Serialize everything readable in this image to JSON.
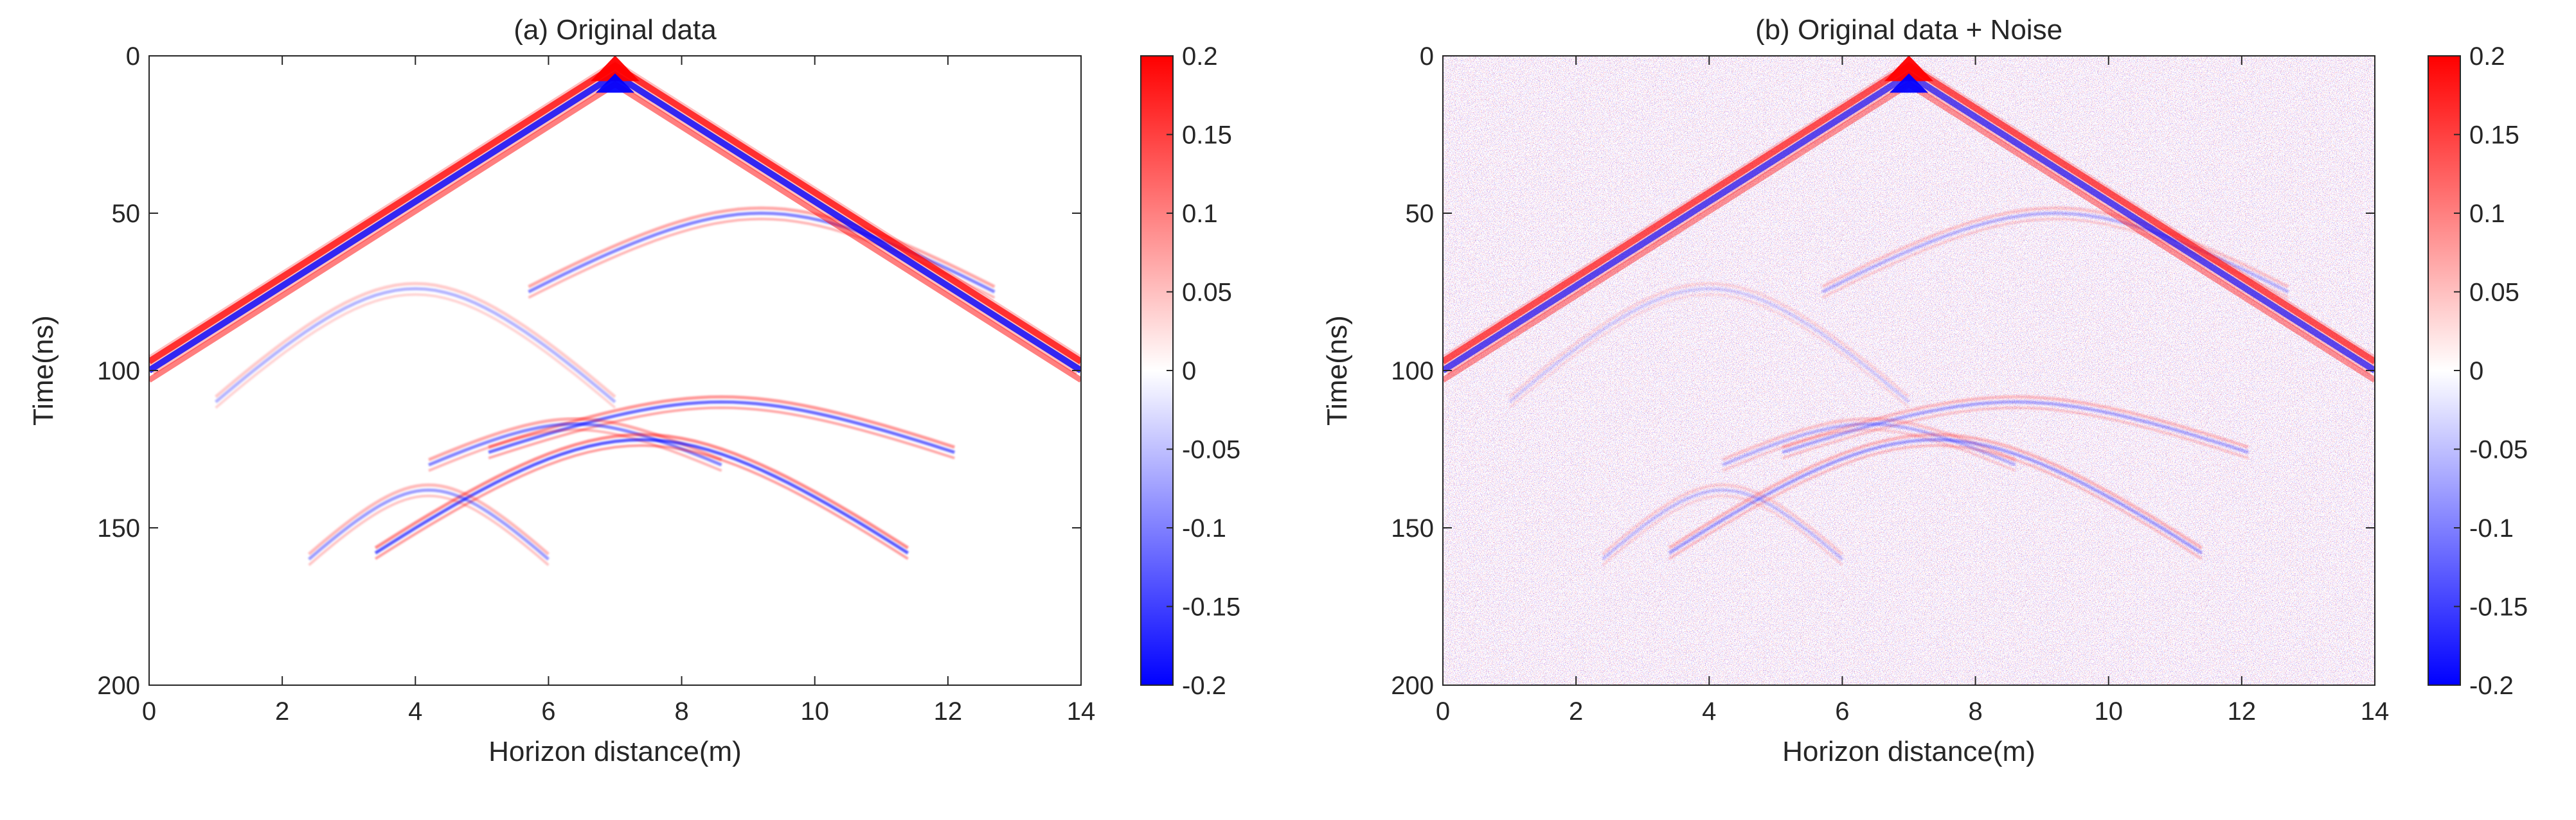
{
  "chart_data": [
    {
      "type": "heatmap",
      "panel": "a",
      "title": "(a) Original data",
      "xlabel": "Horizon distance(m)",
      "ylabel": "Time(ns)",
      "xlim": [
        0,
        14
      ],
      "ylim": [
        0,
        200
      ],
      "y_direction": "reversed",
      "xticks": [
        0,
        2,
        4,
        6,
        8,
        10,
        12,
        14
      ],
      "yticks": [
        0,
        50,
        100,
        150,
        200
      ],
      "noise": false,
      "direct_wave": {
        "apex_x": 7,
        "apex_t": 6,
        "end_t": 100,
        "polarity_sequence": [
          "positive",
          "negative",
          "positive"
        ],
        "peak_amplitude": 0.2
      },
      "reflections": [
        {
          "apex_x": 9.2,
          "apex_t": 50,
          "half_width_x": 3.5,
          "edge_t": 75,
          "amplitude": 0.05
        },
        {
          "apex_x": 4.0,
          "apex_t": 74,
          "half_width_x": 3.0,
          "edge_t": 110,
          "amplitude": 0.03
        },
        {
          "apex_x": 8.6,
          "apex_t": 110,
          "half_width_x": 3.5,
          "edge_t": 126,
          "amplitude": 0.06
        },
        {
          "apex_x": 6.4,
          "apex_t": 117,
          "half_width_x": 2.2,
          "edge_t": 130,
          "amplitude": 0.05
        },
        {
          "apex_x": 7.4,
          "apex_t": 122,
          "half_width_x": 4.0,
          "edge_t": 158,
          "amplitude": 0.07
        },
        {
          "apex_x": 4.2,
          "apex_t": 138,
          "half_width_x": 1.8,
          "edge_t": 160,
          "amplitude": 0.04
        }
      ]
    },
    {
      "type": "heatmap",
      "panel": "b",
      "title": "(b) Original data + Noise",
      "xlabel": "Horizon distance(m)",
      "ylabel": "Time(ns)",
      "xlim": [
        0,
        14
      ],
      "ylim": [
        0,
        200
      ],
      "y_direction": "reversed",
      "xticks": [
        0,
        2,
        4,
        6,
        8,
        10,
        12,
        14
      ],
      "yticks": [
        0,
        50,
        100,
        150,
        200
      ],
      "noise": true,
      "noise_amplitude": 0.03
    }
  ],
  "colorbar": {
    "min": -0.2,
    "max": 0.2,
    "ticks": [
      0.2,
      0.15,
      0.1,
      0.05,
      0,
      -0.05,
      -0.1,
      -0.15,
      -0.2
    ],
    "tick_labels": [
      "0.2",
      "0.15",
      "0.1",
      "0.05",
      "0",
      "-0.05",
      "-0.1",
      "-0.15",
      "-0.2"
    ],
    "colors": {
      "low": "#0000ff",
      "mid": "#ffffff",
      "high": "#ff0000"
    }
  },
  "colors": {
    "axis": "#262626",
    "background": "#ffffff"
  }
}
